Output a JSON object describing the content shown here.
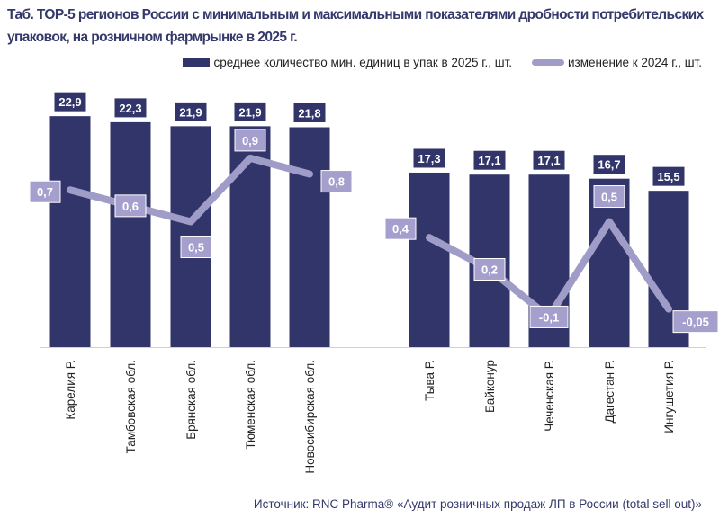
{
  "title": "Таб. ТОР-5 регионов России с минимальным и максимальными показателями дробности потребительских упаковок, на розничном фармрынке в 2025 г.",
  "source": "Источник: RNC Pharma® «Аудит розничных продаж ЛП в России (total sell out)»",
  "colors": {
    "bar": "#31356a",
    "line": "#a09cc8",
    "line_label": "#a59fce"
  },
  "chart_data": {
    "type": "bar+line",
    "categories": [
      "Карелия Р.",
      "Тамбовская обл.",
      "Брянская обл.",
      "Тюменская обл.",
      "Новосибирская обл.",
      "Тыва Р.",
      "Байконур",
      "Чеченская Р.",
      "Дагестан Р.",
      "Ингушетия Р."
    ],
    "series": [
      {
        "name": "среднее количество мин. единиц в упак в 2025 г., шт.",
        "type": "bar",
        "axis": "primary",
        "values": [
          22.9,
          22.3,
          21.9,
          21.9,
          21.8,
          17.3,
          17.1,
          17.1,
          16.7,
          15.5
        ],
        "labels": [
          "22,9",
          "22,3",
          "21,9",
          "21,9",
          "21,8",
          "17,3",
          "17,1",
          "17,1",
          "16,7",
          "15,5"
        ]
      },
      {
        "name": "изменение к 2024 г., шт.",
        "type": "line",
        "axis": "secondary",
        "values": [
          0.7,
          0.6,
          0.5,
          0.9,
          0.8,
          0.4,
          0.2,
          -0.1,
          0.5,
          -0.05
        ],
        "labels": [
          "0,7",
          "0,6",
          "0,5",
          "0,9",
          "0,8",
          "0,4",
          "0,2",
          "-0,1",
          "0,5",
          "-0,05"
        ],
        "segments": [
          [
            0,
            4
          ],
          [
            5,
            9
          ]
        ]
      }
    ],
    "ylim": [
      0,
      25.5
    ],
    "y2lim": [
      -0.29,
      1.33
    ],
    "grid": false,
    "axes_visible": false,
    "legend": "top-right"
  }
}
